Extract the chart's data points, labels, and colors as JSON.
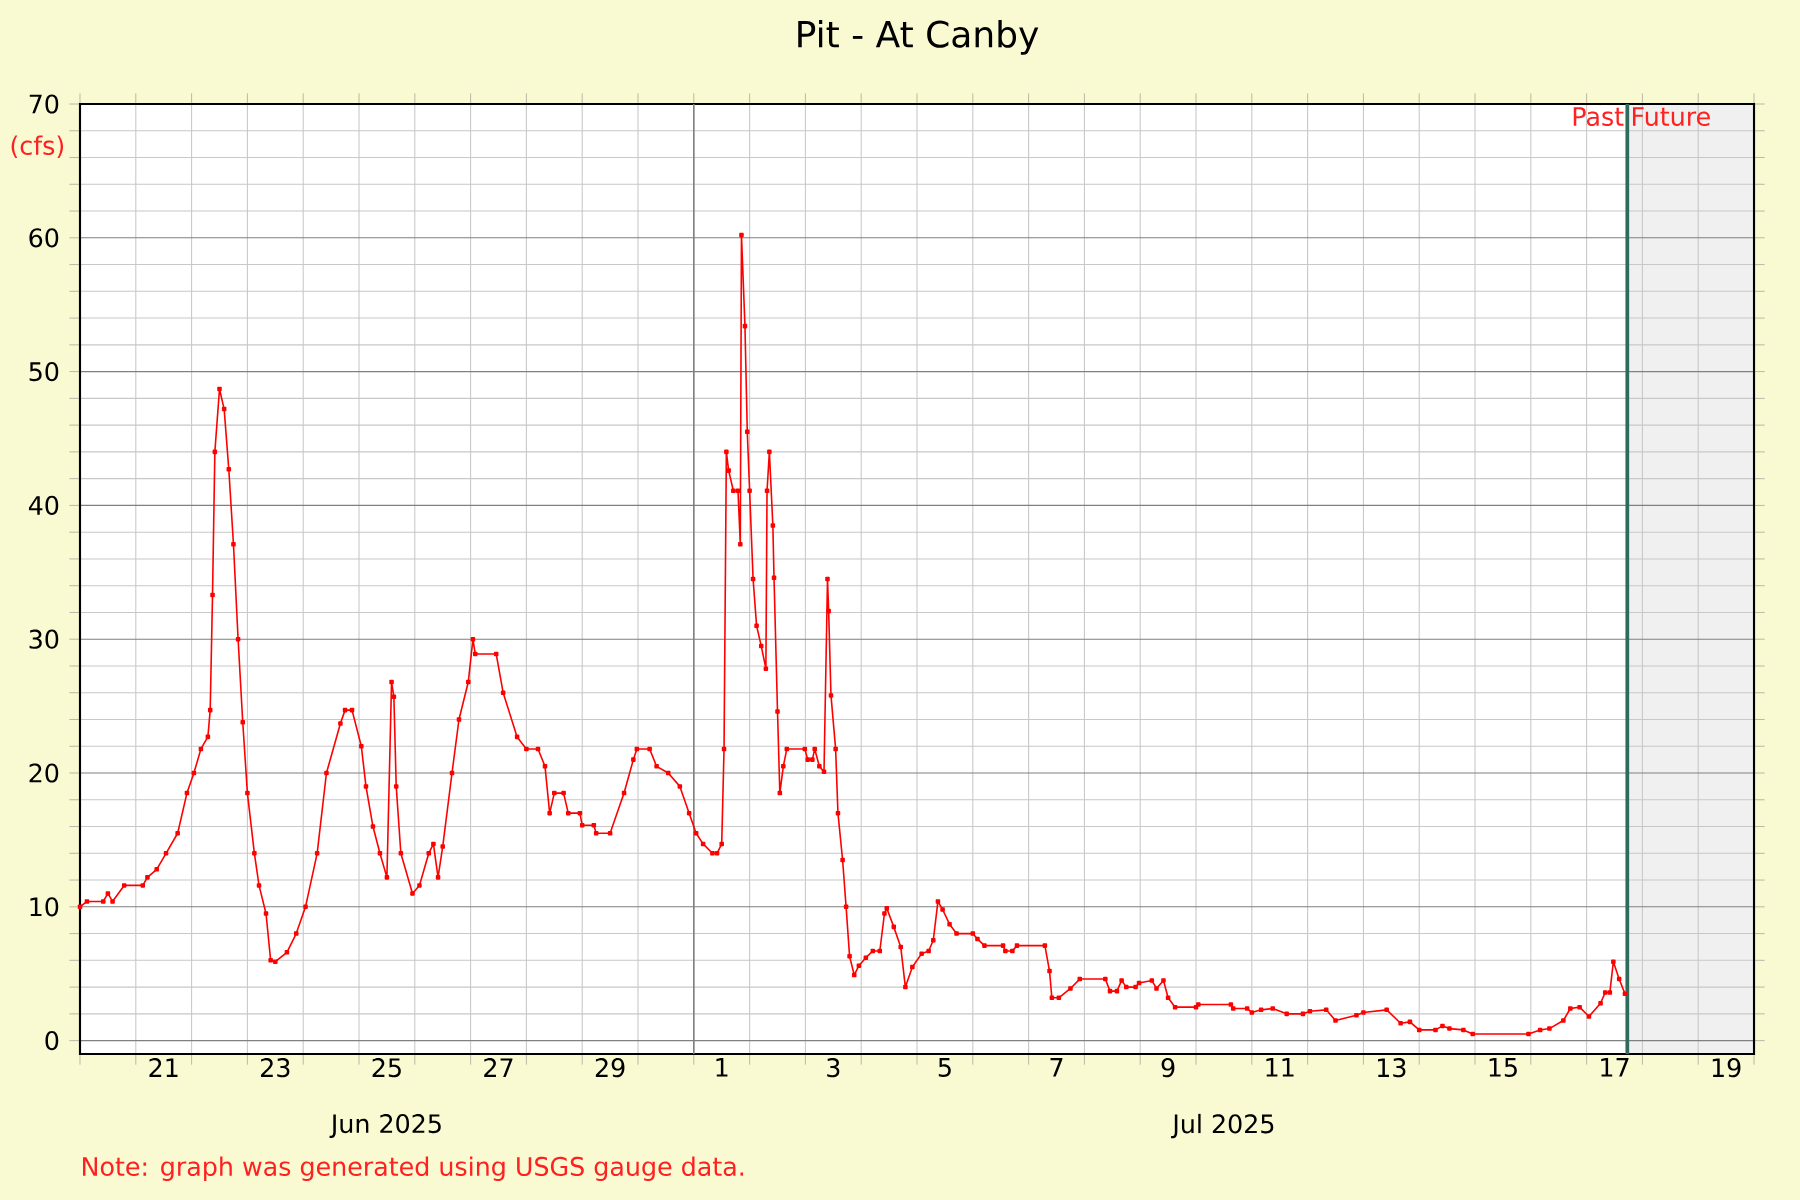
{
  "chart_data": {
    "type": "line",
    "title": "Pit - At Canby",
    "ylabel": "(cfs)",
    "color": "#ff0000",
    "marker": "square",
    "grid": true,
    "xlim": [
      "2025-06-20",
      "2025-07-20"
    ],
    "ylim": [
      -1,
      70
    ],
    "xticks": [
      {
        "value": "2025-06-20",
        "label": null
      },
      {
        "value": "2025-06-21",
        "label": null
      },
      {
        "value": "2025-06-22",
        "label": null
      },
      {
        "value": "2025-06-23",
        "label": null
      },
      {
        "value": "2025-06-24",
        "label": null
      },
      {
        "value": "2025-06-25",
        "label": null
      },
      {
        "value": "2025-06-26",
        "label": null
      },
      {
        "value": "2025-06-27",
        "label": null
      },
      {
        "value": "2025-06-28",
        "label": null
      },
      {
        "value": "2025-06-29",
        "label": null
      },
      {
        "value": "2025-06-30",
        "label": null
      },
      {
        "value": "2025-07-01",
        "label": null
      },
      {
        "value": "2025-07-02",
        "label": null
      },
      {
        "value": "2025-07-03",
        "label": null
      },
      {
        "value": "2025-07-04",
        "label": null
      },
      {
        "value": "2025-07-05",
        "label": null
      },
      {
        "value": "2025-07-06",
        "label": null
      },
      {
        "value": "2025-07-07",
        "label": null
      },
      {
        "value": "2025-07-08",
        "label": null
      },
      {
        "value": "2025-07-09",
        "label": null
      },
      {
        "value": "2025-07-10",
        "label": null
      },
      {
        "value": "2025-07-11",
        "label": null
      },
      {
        "value": "2025-07-12",
        "label": null
      },
      {
        "value": "2025-07-13",
        "label": null
      },
      {
        "value": "2025-07-14",
        "label": null
      },
      {
        "value": "2025-07-15",
        "label": null
      },
      {
        "value": "2025-07-16",
        "label": null
      },
      {
        "value": "2025-07-17",
        "label": null
      },
      {
        "value": "2025-07-18",
        "label": null
      },
      {
        "value": "2025-07-19",
        "label": null
      },
      {
        "value": "2025-07-20",
        "label": null
      },
      {
        "value": "2025-06-21T12:00",
        "label": "21"
      },
      {
        "value": "2025-06-23T12:00",
        "label": "23"
      },
      {
        "value": "2025-06-25T12:00",
        "label": "25"
      },
      {
        "value": "2025-06-27T12:00",
        "label": "27"
      },
      {
        "value": "2025-06-29T12:00",
        "label": "29"
      },
      {
        "value": "2025-07-01T12:00",
        "label": "1"
      },
      {
        "value": "2025-07-03T12:00",
        "label": "3"
      },
      {
        "value": "2025-07-05T12:00",
        "label": "5"
      },
      {
        "value": "2025-07-07T12:00",
        "label": "7"
      },
      {
        "value": "2025-07-09T12:00",
        "label": "9"
      },
      {
        "value": "2025-07-11T12:00",
        "label": "11"
      },
      {
        "value": "2025-07-13T12:00",
        "label": "13"
      },
      {
        "value": "2025-07-15T12:00",
        "label": "15"
      },
      {
        "value": "2025-07-17T12:00",
        "label": "17"
      },
      {
        "value": "2025-07-19T12:00",
        "label": "19"
      }
    ],
    "yticks": [
      0,
      10,
      20,
      30,
      40,
      50,
      60,
      70,
      {
        "value": 2,
        "label": null
      },
      {
        "value": 4,
        "label": null
      },
      {
        "value": 6,
        "label": null
      },
      {
        "value": 8,
        "label": null
      },
      {
        "value": 12,
        "label": null
      },
      {
        "value": 14,
        "label": null
      },
      {
        "value": 16,
        "label": null
      },
      {
        "value": 18,
        "label": null
      },
      {
        "value": 22,
        "label": null
      },
      {
        "value": 24,
        "label": null
      },
      {
        "value": 26,
        "label": null
      },
      {
        "value": 28,
        "label": null
      },
      {
        "value": 32,
        "label": null
      },
      {
        "value": 34,
        "label": null
      },
      {
        "value": 36,
        "label": null
      },
      {
        "value": 38,
        "label": null
      },
      {
        "value": 42,
        "label": null
      },
      {
        "value": 44,
        "label": null
      },
      {
        "value": 46,
        "label": null
      },
      {
        "value": 48,
        "label": null
      },
      {
        "value": 52,
        "label": null
      },
      {
        "value": 54,
        "label": null
      },
      {
        "value": 56,
        "label": null
      },
      {
        "value": 58,
        "label": null
      },
      {
        "value": 62,
        "label": null
      },
      {
        "value": 64,
        "label": null
      },
      {
        "value": 66,
        "label": null
      },
      {
        "value": 68,
        "label": null
      }
    ],
    "x": [
      "2025-06-20T00:00",
      "2025-06-20T03:00",
      "2025-06-20T10:00",
      "2025-06-20T12:00",
      "2025-06-20T14:00",
      "2025-06-20T19:00",
      "2025-06-21T03:00",
      "2025-06-21T05:00",
      "2025-06-21T09:00",
      "2025-06-21T13:00",
      "2025-06-21T18:00",
      "2025-06-21T22:00",
      "2025-06-22T01:00",
      "2025-06-22T04:00",
      "2025-06-22T07:00",
      "2025-06-22T08:00",
      "2025-06-22T09:00",
      "2025-06-22T10:00",
      "2025-06-22T12:00",
      "2025-06-22T14:00",
      "2025-06-22T16:00",
      "2025-06-22T18:00",
      "2025-06-22T20:00",
      "2025-06-22T22:00",
      "2025-06-23T00:00",
      "2025-06-23T03:00",
      "2025-06-23T05:00",
      "2025-06-23T08:00",
      "2025-06-23T10:00",
      "2025-06-23T12:00",
      "2025-06-23T17:00",
      "2025-06-23T21:00",
      "2025-06-24T01:00",
      "2025-06-24T06:00",
      "2025-06-24T10:00",
      "2025-06-24T16:00",
      "2025-06-24T18:00",
      "2025-06-24T21:00",
      "2025-06-25T01:00",
      "2025-06-25T03:00",
      "2025-06-25T06:00",
      "2025-06-25T09:00",
      "2025-06-25T12:00",
      "2025-06-25T14:00",
      "2025-06-25T15:00",
      "2025-06-25T16:00",
      "2025-06-25T18:00",
      "2025-06-25T23:00",
      "2025-06-26T02:00",
      "2025-06-26T06:00",
      "2025-06-26T08:00",
      "2025-06-26T10:00",
      "2025-06-26T12:00",
      "2025-06-26T16:00",
      "2025-06-26T19:00",
      "2025-06-26T23:00",
      "2025-06-27T01:00",
      "2025-06-27T02:00",
      "2025-06-27T11:00",
      "2025-06-27T14:00",
      "2025-06-27T20:00",
      "2025-06-28T00:00",
      "2025-06-28T05:00",
      "2025-06-28T08:00",
      "2025-06-28T10:00",
      "2025-06-28T12:00",
      "2025-06-28T16:00",
      "2025-06-28T18:00",
      "2025-06-28T23:00",
      "2025-06-29T00:00",
      "2025-06-29T05:00",
      "2025-06-29T06:00",
      "2025-06-29T12:00",
      "2025-06-29T18:00",
      "2025-06-29T22:00",
      "2025-06-29T23:30",
      "2025-06-30T05:00",
      "2025-06-30T08:00",
      "2025-06-30T13:00",
      "2025-06-30T18:00",
      "2025-06-30T22:00",
      "2025-07-01T01:00",
      "2025-07-01T04:00",
      "2025-07-01T08:00",
      "2025-07-01T10:00",
      "2025-07-01T12:00",
      "2025-07-01T13:00",
      "2025-07-01T14:00",
      "2025-07-01T15:00",
      "2025-07-01T17:00",
      "2025-07-01T19:00",
      "2025-07-01T20:00",
      "2025-07-01T20:30",
      "2025-07-01T22:00",
      "2025-07-01T23:00",
      "2025-07-02T00:00",
      "2025-07-02T01:30",
      "2025-07-02T03:00",
      "2025-07-02T05:00",
      "2025-07-02T07:00",
      "2025-07-02T07:30",
      "2025-07-02T08:30",
      "2025-07-02T10:00",
      "2025-07-02T10:30",
      "2025-07-02T12:00",
      "2025-07-02T13:00",
      "2025-07-02T14:30",
      "2025-07-02T16:00",
      "2025-07-02T23:45",
      "2025-07-03T01:00",
      "2025-07-03T03:00",
      "2025-07-03T04:00",
      "2025-07-03T06:00",
      "2025-07-03T08:00",
      "2025-07-03T09:30",
      "2025-07-03T10:00",
      "2025-07-03T11:00",
      "2025-07-03T13:00",
      "2025-07-03T14:00",
      "2025-07-03T16:00",
      "2025-07-03T17:30",
      "2025-07-03T19:00",
      "2025-07-03T21:00",
      "2025-07-03T23:00",
      "2025-07-04T02:00",
      "2025-07-04T05:00",
      "2025-07-04T08:00",
      "2025-07-04T10:00",
      "2025-07-04T11:00",
      "2025-07-04T14:00",
      "2025-07-04T17:00",
      "2025-07-04T19:00",
      "2025-07-04T22:00",
      "2025-07-05T02:00",
      "2025-07-05T05:00",
      "2025-07-05T07:00",
      "2025-07-05T09:00",
      "2025-07-05T11:00",
      "2025-07-05T14:00",
      "2025-07-05T17:00",
      "2025-07-06T00:00",
      "2025-07-06T02:00",
      "2025-07-06T05:00",
      "2025-07-06T13:00",
      "2025-07-06T14:00",
      "2025-07-06T17:00",
      "2025-07-06T19:00",
      "2025-07-07T07:00",
      "2025-07-07T09:00",
      "2025-07-07T10:00",
      "2025-07-07T13:00",
      "2025-07-07T18:00",
      "2025-07-07T22:00",
      "2025-07-08T09:00",
      "2025-07-08T11:00",
      "2025-07-08T14:00",
      "2025-07-08T16:00",
      "2025-07-08T18:00",
      "2025-07-08T22:00",
      "2025-07-08T23:30",
      "2025-07-09T05:00",
      "2025-07-09T07:00",
      "2025-07-09T10:00",
      "2025-07-09T12:00",
      "2025-07-09T15:00",
      "2025-07-10T00:00",
      "2025-07-10T01:00",
      "2025-07-10T15:00",
      "2025-07-10T16:00",
      "2025-07-10T22:00",
      "2025-07-11T00:00",
      "2025-07-11T04:00",
      "2025-07-11T09:00",
      "2025-07-11T15:00",
      "2025-07-11T22:00",
      "2025-07-12T01:00",
      "2025-07-12T08:00",
      "2025-07-12T12:00",
      "2025-07-12T21:00",
      "2025-07-13T00:00",
      "2025-07-13T10:00",
      "2025-07-13T16:00",
      "2025-07-13T20:00",
      "2025-07-14T00:00",
      "2025-07-14T07:00",
      "2025-07-14T10:00",
      "2025-07-14T13:00",
      "2025-07-14T19:00",
      "2025-07-14T23:00",
      "2025-07-15T23:00",
      "2025-07-16T04:00",
      "2025-07-16T08:00",
      "2025-07-16T14:00",
      "2025-07-16T17:00",
      "2025-07-16T21:00",
      "2025-07-17T01:00",
      "2025-07-17T06:00",
      "2025-07-17T08:00",
      "2025-07-17T10:00",
      "2025-07-17T11:30",
      "2025-07-17T14:00",
      "2025-07-17T16:30"
    ],
    "values": [
      10,
      10.4,
      10.4,
      11,
      10.4,
      11.6,
      11.6,
      12.2,
      12.8,
      14,
      15.5,
      18.5,
      20,
      21.8,
      22.7,
      24.7,
      33.3,
      44,
      48.7,
      47.2,
      42.7,
      37.1,
      30,
      23.8,
      18.5,
      14,
      11.6,
      9.5,
      6,
      5.9,
      6.6,
      8,
      10,
      14,
      20,
      23.7,
      24.7,
      24.7,
      22,
      19,
      16,
      14,
      12.2,
      26.8,
      25.7,
      19,
      14,
      11,
      11.6,
      14,
      14.7,
      12.2,
      14.5,
      20,
      24,
      26.8,
      30,
      28.9,
      28.9,
      26,
      22.7,
      21.8,
      21.8,
      20.5,
      17,
      18.5,
      18.5,
      17,
      17,
      16.1,
      16.1,
      15.5,
      15.5,
      18.5,
      21,
      21.8,
      21.8,
      20.5,
      20,
      19,
      17,
      15.5,
      14.7,
      14,
      14,
      14.7,
      21.8,
      44,
      42.6,
      41.1,
      41.1,
      37.1,
      60.2,
      53.4,
      45.5,
      41.1,
      34.5,
      31,
      29.5,
      27.8,
      41.1,
      44,
      38.5,
      34.6,
      24.6,
      18.5,
      20.5,
      21.8,
      21.8,
      21,
      21,
      21.8,
      20.5,
      20.1,
      34.5,
      32.1,
      25.8,
      21.8,
      17,
      13.5,
      10,
      6.3,
      4.9,
      5.6,
      6.2,
      6.7,
      6.7,
      9.5,
      9.9,
      8.5,
      7,
      4,
      5.5,
      6.5,
      6.7,
      7.5,
      10.4,
      9.8,
      8.7,
      8,
      8,
      7.6,
      7.1,
      7.1,
      6.7,
      6.7,
      7.1,
      7.1,
      5.2,
      3.2,
      3.2,
      3.9,
      4.6,
      4.6,
      3.7,
      3.7,
      4.5,
      4,
      4,
      4.3,
      4.5,
      3.9,
      4.5,
      3.2,
      2.5,
      2.5,
      2.7,
      2.7,
      2.4,
      2.4,
      2.1,
      2.3,
      2.4,
      2,
      2,
      2.2,
      2.3,
      1.5,
      1.9,
      2.1,
      2.3,
      1.3,
      1.4,
      0.8,
      0.8,
      1.1,
      0.9,
      0.8,
      0.5,
      0.5,
      0.8,
      0.9,
      1.5,
      2.4,
      2.5,
      1.8,
      2.8,
      3.6,
      3.6,
      5.9,
      4.6,
      3.5
    ],
    "ref_lines": [
      {
        "axis": "x",
        "value": "2025-07-01",
        "color": "#808080"
      },
      {
        "axis": "x",
        "value": "2025-07-17T17:30",
        "label": "Past",
        "color": "#2f6b5c"
      }
    ],
    "bands": [
      {
        "axis": "x",
        "from": "2025-07-17T17:30",
        "to": "2025-07-20",
        "label": "Future",
        "color": "#f0f0f0"
      }
    ],
    "annotations": [
      "Jun 2025",
      "Jul 2025",
      "Note: graph was generated using USGS gauge data."
    ]
  }
}
